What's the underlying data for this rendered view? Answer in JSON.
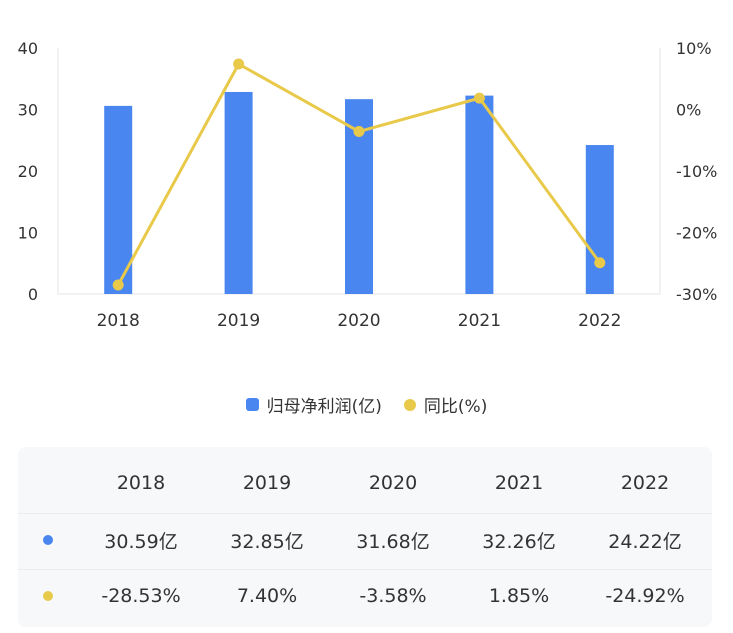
{
  "chart_data": {
    "type": "bar+line",
    "categories": [
      "2018",
      "2019",
      "2020",
      "2021",
      "2022"
    ],
    "series": [
      {
        "name": "归母净利润(亿)",
        "type": "bar",
        "axis": "left",
        "values": [
          30.59,
          32.85,
          31.68,
          32.26,
          24.22
        ]
      },
      {
        "name": "同比(%)",
        "type": "line",
        "axis": "right",
        "values": [
          -28.53,
          7.4,
          -3.58,
          1.85,
          -24.92
        ]
      }
    ],
    "y_left": {
      "min": 0,
      "max": 40,
      "ticks": [
        "0",
        "10",
        "20",
        "30",
        "40"
      ]
    },
    "y_right": {
      "min": -30,
      "max": 10,
      "ticks": [
        "-30%",
        "-20%",
        "-10%",
        "0%",
        "10%"
      ]
    },
    "grid": false,
    "legend_position": "bottom-center",
    "colors": {
      "bar": "#4a86f0",
      "line": "#e8c94a"
    }
  },
  "legend": {
    "bar_label": "归母净利润(亿)",
    "line_label": "同比(%)"
  },
  "table": {
    "header": [
      "2018",
      "2019",
      "2020",
      "2021",
      "2022"
    ],
    "row_profit": [
      "30.59亿",
      "32.85亿",
      "31.68亿",
      "32.26亿",
      "24.22亿"
    ],
    "row_yoy": [
      "-28.53%",
      "7.40%",
      "-3.58%",
      "1.85%",
      "-24.92%"
    ]
  }
}
